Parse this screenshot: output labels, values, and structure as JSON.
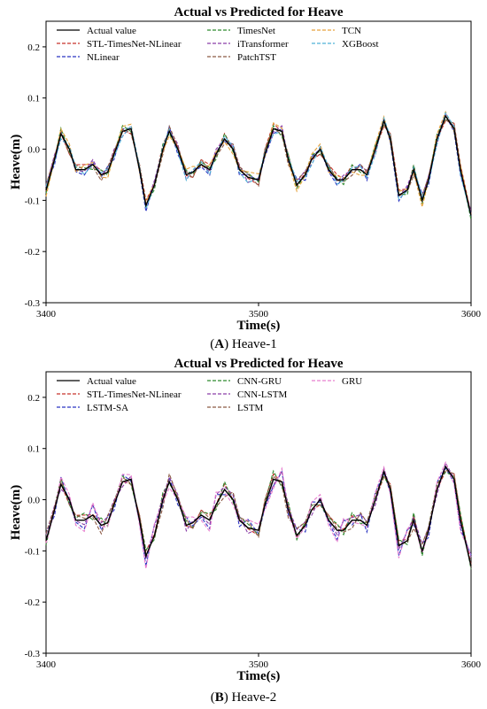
{
  "captions": [
    {
      "letter": "A",
      "text": "Heave-1"
    },
    {
      "letter": "B",
      "text": "Heave-2"
    }
  ],
  "chart_data": [
    {
      "type": "line",
      "title": "Actual vs Predicted for Heave",
      "xlabel": "Time(s)",
      "ylabel": "Heave(m)",
      "xlim": [
        3400,
        3600
      ],
      "ylim": [
        -0.3,
        0.25
      ],
      "xticks": [
        3400,
        3500,
        3600
      ],
      "yticks": [
        -0.3,
        -0.2,
        -0.1,
        0.0,
        0.1,
        0.2
      ],
      "grid": false,
      "legend_position": "top",
      "legend_columns": 3,
      "actual": {
        "name": "Actual value",
        "color": "#000000",
        "x": [
          3400,
          3404,
          3407,
          3411,
          3414,
          3418,
          3422,
          3426,
          3429,
          3432,
          3436,
          3440,
          3444,
          3447,
          3451,
          3455,
          3458,
          3462,
          3466,
          3469,
          3473,
          3477,
          3480,
          3484,
          3488,
          3491,
          3495,
          3500,
          3503,
          3507,
          3511,
          3514,
          3518,
          3522,
          3525,
          3529,
          3533,
          3537,
          3540,
          3544,
          3548,
          3551,
          3555,
          3559,
          3562,
          3566,
          3570,
          3573,
          3577,
          3580,
          3584,
          3588,
          3592,
          3595,
          3600
        ],
        "y": [
          -0.08,
          -0.02,
          0.03,
          0.0,
          -0.04,
          -0.04,
          -0.03,
          -0.05,
          -0.045,
          -0.01,
          0.035,
          0.04,
          -0.04,
          -0.11,
          -0.07,
          0.0,
          0.035,
          0.0,
          -0.05,
          -0.045,
          -0.03,
          -0.04,
          -0.01,
          0.02,
          0.0,
          -0.04,
          -0.055,
          -0.06,
          -0.01,
          0.04,
          0.035,
          -0.02,
          -0.07,
          -0.05,
          -0.02,
          0.0,
          -0.04,
          -0.06,
          -0.06,
          -0.04,
          -0.04,
          -0.05,
          0.0,
          0.055,
          0.02,
          -0.09,
          -0.08,
          -0.04,
          -0.1,
          -0.06,
          0.02,
          0.065,
          0.04,
          -0.04,
          -0.13
        ]
      },
      "series": [
        {
          "name": "STL-TimesNet-NLinear",
          "color": "#c8332a"
        },
        {
          "name": "NLinear",
          "color": "#2b35c2"
        },
        {
          "name": "TimesNet",
          "color": "#2e8b2e"
        },
        {
          "name": "iTransformer",
          "color": "#8a3fa8"
        },
        {
          "name": "PatchTST",
          "color": "#8c5a45"
        },
        {
          "name": "TCN",
          "color": "#e6a23c"
        },
        {
          "name": "XGBoost",
          "color": "#4fb2d6"
        }
      ],
      "series_offsets": [
        [
          0.01,
          0.0,
          0.01,
          0.0,
          0.005,
          0.0,
          -0.01,
          0.01
        ],
        [
          -0.01,
          0.005,
          -0.005,
          0.01,
          -0.01,
          0.005,
          0.0,
          -0.005
        ],
        [
          0.005,
          -0.01,
          0.01,
          -0.005,
          0.0,
          0.01,
          -0.005,
          0.005
        ],
        [
          -0.005,
          0.01,
          0.0,
          0.005,
          0.01,
          -0.01,
          0.005,
          0.0
        ],
        [
          0.0,
          -0.005,
          -0.01,
          0.01,
          0.005,
          0.005,
          -0.01,
          0.01
        ],
        [
          0.01,
          0.005,
          -0.005,
          -0.01,
          0.0,
          0.01,
          0.01,
          -0.005
        ],
        [
          -0.01,
          0.0,
          0.005,
          0.005,
          -0.005,
          -0.01,
          0.005,
          0.005
        ]
      ]
    },
    {
      "type": "line",
      "title": "Actual vs Predicted for Heave",
      "xlabel": "Time(s)",
      "ylabel": "Heave(m)",
      "xlim": [
        3400,
        3600
      ],
      "ylim": [
        -0.3,
        0.25
      ],
      "xticks": [
        3400,
        3500,
        3600
      ],
      "yticks": [
        -0.3,
        -0.2,
        -0.1,
        0.0,
        0.1,
        0.2
      ],
      "grid": false,
      "legend_position": "top",
      "legend_columns": 3,
      "actual": {
        "name": "Actual value",
        "color": "#000000",
        "x": [
          3400,
          3404,
          3407,
          3411,
          3414,
          3418,
          3422,
          3426,
          3429,
          3432,
          3436,
          3440,
          3444,
          3447,
          3451,
          3455,
          3458,
          3462,
          3466,
          3469,
          3473,
          3477,
          3480,
          3484,
          3488,
          3491,
          3495,
          3500,
          3503,
          3507,
          3511,
          3514,
          3518,
          3522,
          3525,
          3529,
          3533,
          3537,
          3540,
          3544,
          3548,
          3551,
          3555,
          3559,
          3562,
          3566,
          3570,
          3573,
          3577,
          3580,
          3584,
          3588,
          3592,
          3595,
          3600
        ],
        "y": [
          -0.08,
          -0.02,
          0.03,
          0.0,
          -0.04,
          -0.04,
          -0.03,
          -0.05,
          -0.045,
          -0.01,
          0.035,
          0.04,
          -0.04,
          -0.11,
          -0.07,
          0.0,
          0.035,
          0.0,
          -0.05,
          -0.045,
          -0.03,
          -0.04,
          -0.01,
          0.02,
          0.0,
          -0.04,
          -0.055,
          -0.06,
          -0.01,
          0.04,
          0.035,
          -0.02,
          -0.07,
          -0.05,
          -0.02,
          0.0,
          -0.04,
          -0.06,
          -0.06,
          -0.04,
          -0.04,
          -0.05,
          0.0,
          0.055,
          0.02,
          -0.09,
          -0.08,
          -0.04,
          -0.1,
          -0.06,
          0.02,
          0.065,
          0.04,
          -0.04,
          -0.13
        ]
      },
      "series": [
        {
          "name": "STL-TimesNet-NLinear",
          "color": "#c8332a"
        },
        {
          "name": "LSTM-SA",
          "color": "#2b35c2"
        },
        {
          "name": "CNN-GRU",
          "color": "#2e8b2e"
        },
        {
          "name": "CNN-LSTM",
          "color": "#8a3fa8"
        },
        {
          "name": "LSTM",
          "color": "#8c5a45"
        },
        {
          "name": "GRU",
          "color": "#e77fcf"
        }
      ],
      "series_offsets": [
        [
          0.01,
          0.0,
          0.01,
          0.0,
          0.005,
          0.0,
          -0.01,
          0.01
        ],
        [
          -0.015,
          0.02,
          -0.01,
          0.01,
          -0.01,
          0.015,
          -0.005,
          -0.005
        ],
        [
          0.015,
          -0.01,
          0.015,
          -0.005,
          0.005,
          0.01,
          -0.01,
          0.005
        ],
        [
          -0.01,
          0.02,
          0.005,
          0.01,
          0.01,
          -0.01,
          0.005,
          0.0
        ],
        [
          0.005,
          -0.005,
          -0.015,
          0.015,
          0.005,
          0.01,
          -0.01,
          0.01
        ],
        [
          -0.02,
          0.025,
          -0.005,
          -0.01,
          0.0,
          0.015,
          0.01,
          -0.01
        ]
      ]
    }
  ]
}
